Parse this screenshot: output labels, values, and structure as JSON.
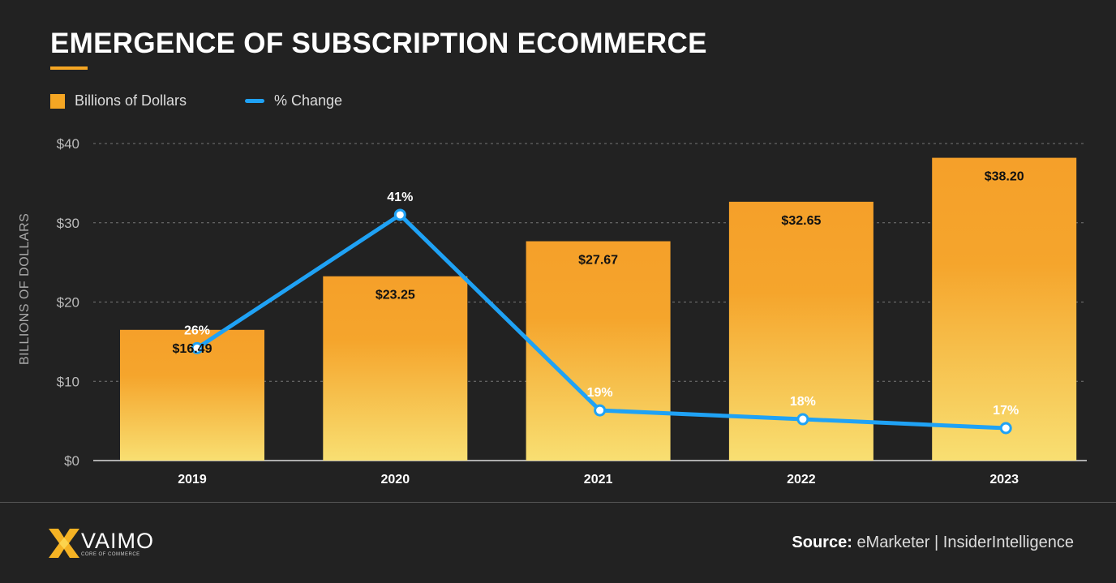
{
  "chart_data": {
    "type": "bar",
    "title": "EMERGENCE OF SUBSCRIPTION ECOMMERCE",
    "ylabel": "BILLIONS OF DOLLARS",
    "ylim": [
      0,
      40
    ],
    "yticks": [
      0,
      10,
      20,
      30,
      40
    ],
    "ytick_labels": [
      "$0",
      "$10",
      "$20",
      "$30",
      "$40"
    ],
    "grid": true,
    "legend_placement": "top-left",
    "categories": [
      "2019",
      "2020",
      "2021",
      "2022",
      "2023"
    ],
    "series": [
      {
        "name": "Billions of Dollars",
        "type": "bar",
        "values": [
          16.49,
          23.25,
          27.67,
          32.65,
          38.2
        ],
        "labels": [
          "$16.49",
          "$23.25",
          "$27.67",
          "$32.65",
          "$38.20"
        ],
        "color": "#f5a623"
      },
      {
        "name": "% Change",
        "type": "line",
        "values": [
          26,
          41,
          19,
          18,
          17
        ],
        "labels": [
          "26%",
          "41%",
          "19%",
          "18%",
          "17%"
        ],
        "color": "#1fa2f5"
      }
    ]
  },
  "footer": {
    "logo": "VAIMO",
    "logo_tagline": "CORE OF COMMERCE",
    "source_label": "Source:",
    "source_text": "eMarketer | InsiderIntelligence"
  }
}
